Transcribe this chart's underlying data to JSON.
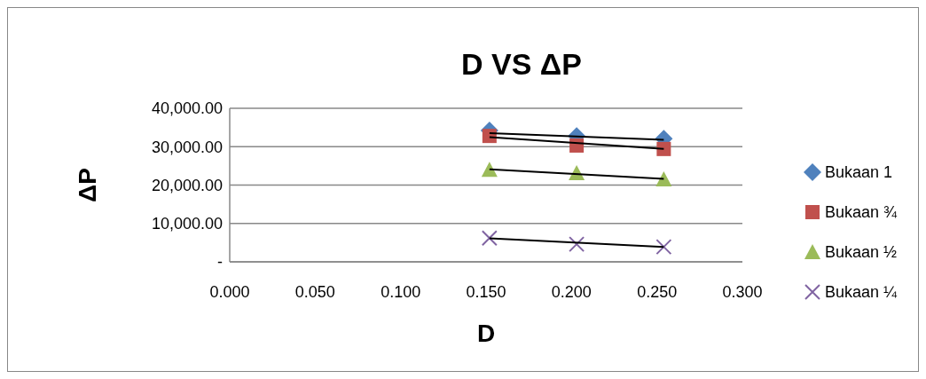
{
  "chart_data": {
    "type": "scatter",
    "title": "D VS ΔP",
    "xlabel": "D",
    "ylabel": "ΔP",
    "xlim": [
      0,
      0.3
    ],
    "xticks": [
      {
        "value": 0,
        "label": "0.000"
      },
      {
        "value": 0.05,
        "label": "0.050"
      },
      {
        "value": 0.1,
        "label": "0.100"
      },
      {
        "value": 0.15,
        "label": "0.150"
      },
      {
        "value": 0.2,
        "label": "0.200"
      },
      {
        "value": 0.25,
        "label": "0.250"
      },
      {
        "value": 0.3,
        "label": "0.300"
      }
    ],
    "ylim": [
      0,
      40000
    ],
    "yticks": [
      {
        "value": 0,
        "label": "-"
      },
      {
        "value": 10000,
        "label": "10,000.00"
      },
      {
        "value": 20000,
        "label": "20,000.00"
      },
      {
        "value": 30000,
        "label": "30,000.00"
      },
      {
        "value": 40000,
        "label": "40,000.00"
      }
    ],
    "grid": "y",
    "legend": "right",
    "series": [
      {
        "name": "Bukaan 1",
        "color": "#4f81bd",
        "marker": "diamond",
        "x": [
          0.152,
          0.203,
          0.254
        ],
        "values": [
          34200,
          32800,
          32100
        ]
      },
      {
        "name": "Bukaan ¾",
        "color": "#c0504d",
        "marker": "square",
        "x": [
          0.152,
          0.203,
          0.254
        ],
        "values": [
          32800,
          30300,
          29400
        ]
      },
      {
        "name": "Bukaan ½",
        "color": "#9bbb59",
        "marker": "triangle",
        "x": [
          0.152,
          0.203,
          0.254
        ],
        "values": [
          24000,
          23100,
          21500
        ]
      },
      {
        "name": "Bukaan ¼",
        "color": "#8064a2",
        "marker": "cross",
        "x": [
          0.152,
          0.203,
          0.254
        ],
        "values": [
          6200,
          4600,
          3900
        ]
      },
      {
        "type": "line",
        "color": "#000000",
        "marker": "none",
        "x": [
          0.152,
          0.254
        ],
        "values": [
          33500,
          31800
        ]
      },
      {
        "type": "line",
        "color": "#000000",
        "marker": "none",
        "x": [
          0.152,
          0.254
        ],
        "values": [
          32500,
          29400
        ]
      },
      {
        "type": "line",
        "color": "#000000",
        "marker": "none",
        "x": [
          0.152,
          0.254
        ],
        "values": [
          24100,
          21600
        ]
      },
      {
        "type": "line",
        "color": "#000000",
        "marker": "none",
        "x": [
          0.152,
          0.254
        ],
        "values": [
          6100,
          3900
        ]
      }
    ]
  }
}
